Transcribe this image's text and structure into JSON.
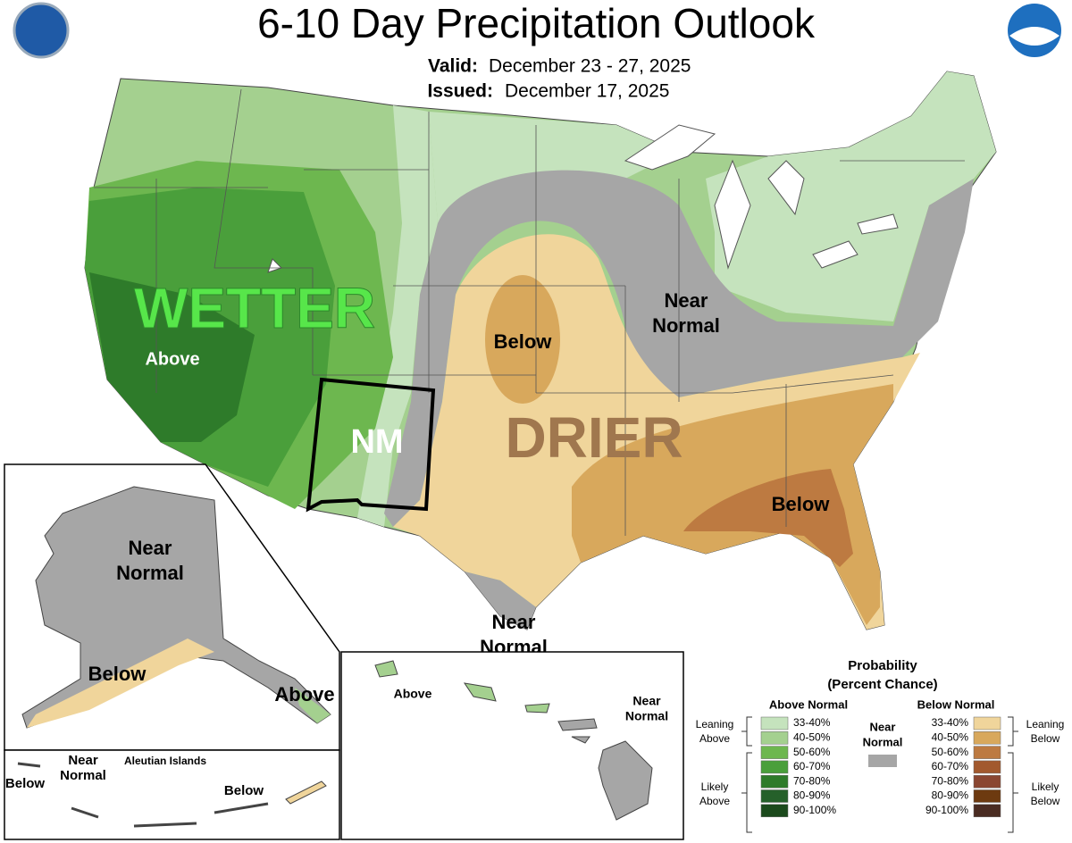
{
  "header": {
    "title": "6-10 Day Precipitation Outlook",
    "valid_label": "Valid:",
    "valid_dates": "December 23 - 27, 2025",
    "issued_label": "Issued:",
    "issued_date": "December 17, 2025"
  },
  "conus_labels": {
    "wetter": "WETTER",
    "above": "Above",
    "nm": "NM",
    "below_plains": "Below",
    "drier": "DRIER",
    "near_normal_east": [
      "Near",
      "Normal"
    ],
    "below_southeast": "Below",
    "near_normal_texas": [
      "Near",
      "Normal"
    ]
  },
  "alaska_labels": {
    "near_normal": [
      "Near",
      "Normal"
    ],
    "below": "Below",
    "above": "Above"
  },
  "aleutian_labels": {
    "title": "Aleutian Islands",
    "near_normal": [
      "Near",
      "Normal"
    ],
    "below_west": "Below",
    "below_east": "Below"
  },
  "hawaii_labels": {
    "above": "Above",
    "near_normal": [
      "Near",
      "Normal"
    ]
  },
  "legend": {
    "title": [
      "Probability",
      "(Percent Chance)"
    ],
    "above_heading": "Above Normal",
    "below_heading": "Below Normal",
    "near_normal": [
      "Near",
      "Normal"
    ],
    "near_normal_color": "#a6a6a6",
    "above": [
      {
        "label": "33-40%",
        "color": "#c5e3bd"
      },
      {
        "label": "40-50%",
        "color": "#a4d08f"
      },
      {
        "label": "50-60%",
        "color": "#6db74f"
      },
      {
        "label": "60-70%",
        "color": "#4a9f3b"
      },
      {
        "label": "70-80%",
        "color": "#2e7b2a"
      },
      {
        "label": "80-90%",
        "color": "#25602a"
      },
      {
        "label": "90-100%",
        "color": "#1b4a1c"
      }
    ],
    "below": [
      {
        "label": "33-40%",
        "color": "#f0d59b"
      },
      {
        "label": "40-50%",
        "color": "#d8a85c"
      },
      {
        "label": "50-60%",
        "color": "#bd7a41"
      },
      {
        "label": "60-70%",
        "color": "#a2592e"
      },
      {
        "label": "70-80%",
        "color": "#8a4631"
      },
      {
        "label": "80-90%",
        "color": "#6d3a10"
      },
      {
        "label": "90-100%",
        "color": "#4a2c22"
      }
    ],
    "groups": {
      "leaning_above": [
        "Leaning",
        "Above"
      ],
      "likely_above": [
        "Likely",
        "Above"
      ],
      "leaning_below": [
        "Leaning",
        "Below"
      ],
      "likely_below": [
        "Likely",
        "Below"
      ]
    }
  }
}
